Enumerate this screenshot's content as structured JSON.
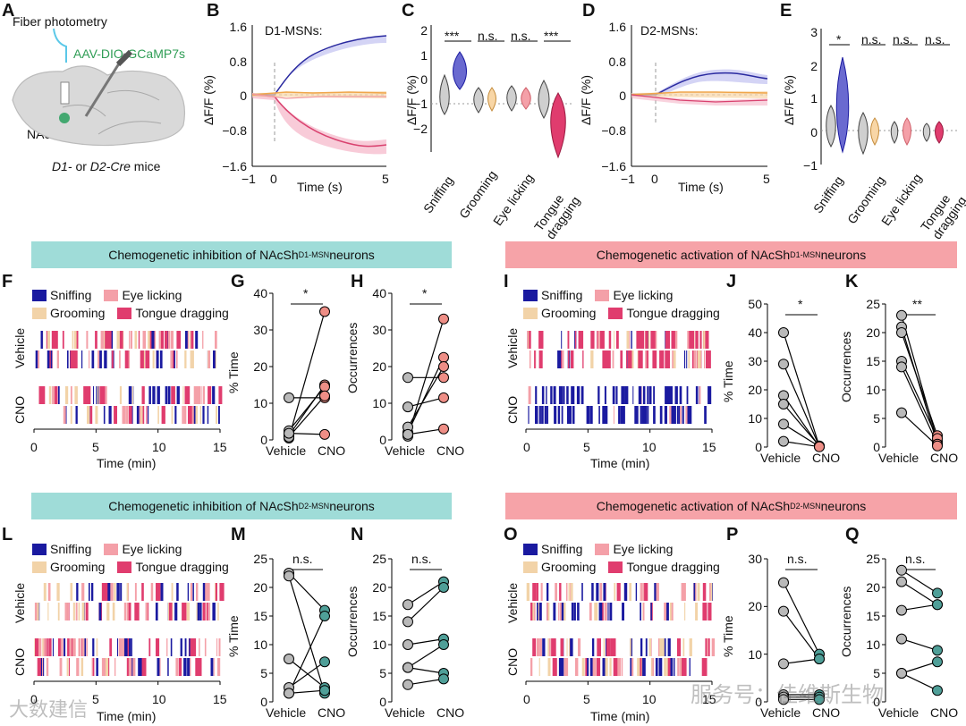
{
  "colors": {
    "sniffing": "#1a1aa0",
    "eye_licking": "#f4a0a8",
    "grooming": "#f2d3a8",
    "tongue": "#e03c6e",
    "teal": "#4f9f98",
    "gray": "#b9b9b9",
    "salmon": "#ee8e86",
    "blue_trace": "#2a2aa0",
    "pink_trace": "#d9426f",
    "orange_trace": "#f0a64a"
  },
  "panel_labels": {
    "A": "A",
    "B": "B",
    "C": "C",
    "D": "D",
    "E": "E",
    "F": "F",
    "G": "G",
    "H": "H",
    "I": "I",
    "J": "J",
    "K": "K",
    "L": "L",
    "M": "M",
    "N": "N",
    "O": "O",
    "P": "P",
    "Q": "Q"
  },
  "panel_a": {
    "title": "Fiber photometry",
    "virus": "AAV-DIO-GCaMP7s",
    "region": "NAcSh",
    "mice_line1": "D1-",
    "mice_mid": " or ",
    "mice_line2": "D2-Cre",
    "mice_tail": " mice"
  },
  "panel_b": {
    "title": "D1-MSNs:",
    "ylabel": "ΔF/F (%)",
    "xlabel": "Time (s)",
    "yticks": [
      "1.6",
      "0.8",
      "0",
      "−0.8",
      "−1.6"
    ],
    "xticks": [
      "−1",
      "0",
      "5"
    ]
  },
  "panel_d": {
    "title": "D2-MSNs:",
    "ylabel": "ΔF/F (%)",
    "xlabel": "Time (s)",
    "yticks": [
      "1.6",
      "0.8",
      "0",
      "−0.8",
      "−1.6"
    ],
    "xticks": [
      "−1",
      "0",
      "5"
    ]
  },
  "panel_c": {
    "ylabel": "ΔF/F (%)",
    "yticks": [
      "2",
      "1",
      "0",
      "−1",
      "−2"
    ],
    "categories": [
      "Sniffing",
      "Grooming",
      "Eye licking",
      "Tongue dragging"
    ],
    "sig": [
      "***",
      "n.s.",
      "n.s.",
      "***"
    ]
  },
  "panel_e": {
    "ylabel": "ΔF/F (%)",
    "yticks": [
      "3",
      "2",
      "1",
      "0",
      "−1"
    ],
    "categories": [
      "Sniffing",
      "Grooming",
      "Eye licking",
      "Tongue dragging"
    ],
    "sig": [
      "*",
      "n.s.",
      "n.s.",
      "n.s."
    ]
  },
  "banners": {
    "top_left": {
      "pre": "Chemogenetic inhibition of NAcSh",
      "sup": "D1-MSN",
      "post": " neurons"
    },
    "top_right": {
      "pre": "Chemogenetic activation of NAcSh",
      "sup": "D1-MSN",
      "post": " neurons"
    },
    "bottom_left": {
      "pre": "Chemogenetic inhibition of NAcSh",
      "sup": "D2-MSN",
      "post": " neurons"
    },
    "bottom_right": {
      "pre": "Chemogenetic activation of NAcSh",
      "sup": "D2-MSN",
      "post": " neurons"
    }
  },
  "legend": {
    "sniffing": "Sniffing",
    "eye_licking": "Eye licking",
    "grooming": "Grooming",
    "tongue": "Tongue dragging"
  },
  "raster": {
    "row1": "Vehicle",
    "row2": "CNO",
    "xlabel": "Time (min)",
    "xticks": [
      "0",
      "5",
      "10",
      "15"
    ]
  },
  "pair_common": {
    "x1": "Vehicle",
    "x2": "CNO"
  },
  "chart_data": [
    {
      "panel": "G",
      "type": "scatter",
      "ylabel": "% Time",
      "yticks": [
        "0",
        "10",
        "20",
        "30",
        "40"
      ],
      "ylim": [
        0,
        40
      ],
      "sig": "*",
      "vehicle": [
        0.5,
        1.2,
        2.5,
        11.5,
        0.8,
        1.8
      ],
      "cno": [
        35,
        15,
        14.5,
        11.5,
        12,
        1.5
      ]
    },
    {
      "panel": "H",
      "type": "scatter",
      "ylabel": "Occurrences",
      "yticks": [
        "0",
        "10",
        "20",
        "30",
        "40"
      ],
      "ylim": [
        0,
        40
      ],
      "sig": "*",
      "vehicle": [
        1,
        2,
        3.5,
        17,
        9,
        1.5
      ],
      "cno": [
        33,
        22.5,
        20,
        17,
        11.5,
        3
      ]
    },
    {
      "panel": "J",
      "type": "scatter",
      "ylabel": "% Time",
      "yticks": [
        "0",
        "10",
        "20",
        "30",
        "40",
        "50"
      ],
      "ylim": [
        0,
        50
      ],
      "sig": "*",
      "vehicle": [
        40,
        29,
        18,
        15,
        8,
        2
      ],
      "cno": [
        0.3,
        0.2,
        0.1,
        0.4,
        0.2,
        0.1
      ]
    },
    {
      "panel": "K",
      "type": "scatter",
      "ylabel": "Occurrences",
      "yticks": [
        "0",
        "5",
        "10",
        "15",
        "20",
        "25"
      ],
      "ylim": [
        0,
        25
      ],
      "sig": "**",
      "vehicle": [
        23,
        21,
        20,
        15,
        14,
        6
      ],
      "cno": [
        1,
        0.5,
        2,
        1.5,
        0.5,
        0.2
      ]
    },
    {
      "panel": "M",
      "type": "scatter",
      "ylabel": "% Time",
      "yticks": [
        "0",
        "5",
        "10",
        "15",
        "20",
        "25"
      ],
      "ylim": [
        0,
        25
      ],
      "sig": "n.s.",
      "vehicle": [
        22.5,
        22,
        7.5,
        2.5,
        1.5,
        1.5
      ],
      "cno": [
        16,
        1.5,
        2.5,
        7,
        15,
        2
      ]
    },
    {
      "panel": "N",
      "type": "scatter",
      "ylabel": "Occurrences",
      "yticks": [
        "0",
        "5",
        "10",
        "15",
        "20",
        "25"
      ],
      "ylim": [
        0,
        25
      ],
      "sig": "n.s.",
      "vehicle": [
        17,
        14,
        10,
        6,
        6,
        3
      ],
      "cno": [
        21,
        20,
        11,
        10,
        5,
        4
      ]
    },
    {
      "panel": "P",
      "type": "scatter",
      "ylabel": "% Time",
      "yticks": [
        "0",
        "10",
        "20",
        "30"
      ],
      "ylim": [
        0,
        30
      ],
      "sig": "n.s.",
      "vehicle": [
        25,
        19,
        8,
        1.5,
        1,
        0.5
      ],
      "cno": [
        10,
        9,
        9,
        1.5,
        1,
        0.5
      ]
    },
    {
      "panel": "Q",
      "type": "scatter",
      "ylabel": "Occurrences",
      "yticks": [
        "0",
        "5",
        "10",
        "15",
        "20",
        "25"
      ],
      "ylim": [
        0,
        25
      ],
      "sig": "n.s.",
      "vehicle": [
        23,
        21,
        16,
        11,
        5,
        5
      ],
      "cno": [
        19,
        17,
        17,
        9,
        7,
        2
      ]
    }
  ],
  "watermark": {
    "left": "大数建信",
    "right": "服务号：佳维斯生物"
  }
}
